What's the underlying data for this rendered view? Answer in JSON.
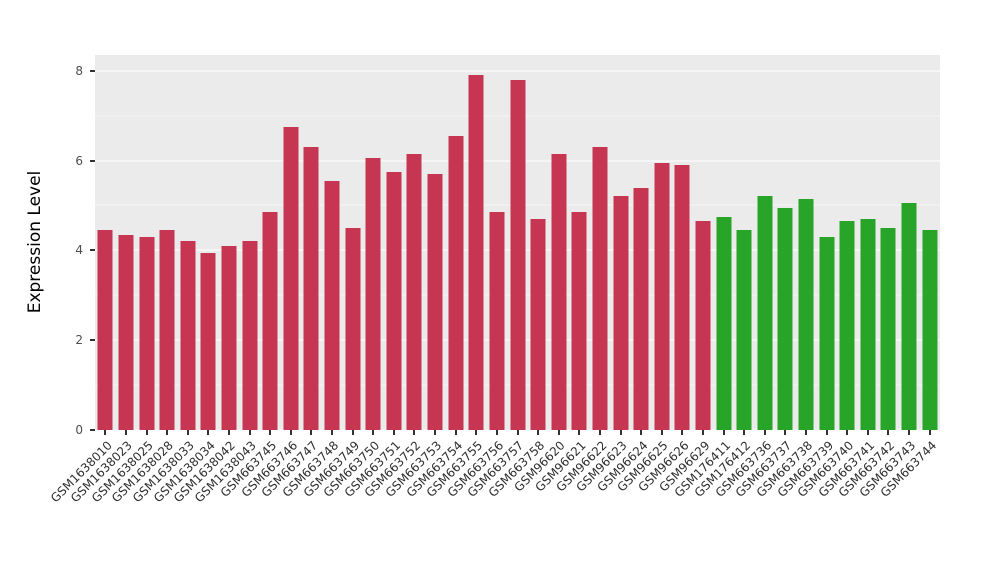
{
  "chart_data": {
    "type": "bar",
    "title": "",
    "xlabel": "",
    "ylabel": "Expression Level",
    "ylim": [
      0,
      8.35
    ],
    "yticks": [
      0,
      2,
      4,
      6,
      8
    ],
    "yticks_minor": [
      1,
      3,
      5,
      7
    ],
    "grid": "white major and minor horizontal gridlines on gray panel",
    "legend_position": "none",
    "panel_bg": "#EBEBEB",
    "groups": [
      {
        "name": "red-group",
        "color": "#C63552"
      },
      {
        "name": "green-group",
        "color": "#28A428"
      }
    ],
    "samples": [
      {
        "label": "GSM1638010",
        "value": 4.45,
        "group": 0
      },
      {
        "label": "GSM1638023",
        "value": 4.35,
        "group": 0
      },
      {
        "label": "GSM1638025",
        "value": 4.3,
        "group": 0
      },
      {
        "label": "GSM1638028",
        "value": 4.45,
        "group": 0
      },
      {
        "label": "GSM1638033",
        "value": 4.2,
        "group": 0
      },
      {
        "label": "GSM1638034",
        "value": 3.95,
        "group": 0
      },
      {
        "label": "GSM1638042",
        "value": 4.1,
        "group": 0
      },
      {
        "label": "GSM1638043",
        "value": 4.2,
        "group": 0
      },
      {
        "label": "GSM663745",
        "value": 4.85,
        "group": 0
      },
      {
        "label": "GSM663746",
        "value": 6.75,
        "group": 0
      },
      {
        "label": "GSM663747",
        "value": 6.3,
        "group": 0
      },
      {
        "label": "GSM663748",
        "value": 5.55,
        "group": 0
      },
      {
        "label": "GSM663749",
        "value": 4.5,
        "group": 0
      },
      {
        "label": "GSM663750",
        "value": 6.05,
        "group": 0
      },
      {
        "label": "GSM663751",
        "value": 5.75,
        "group": 0
      },
      {
        "label": "GSM663752",
        "value": 6.15,
        "group": 0
      },
      {
        "label": "GSM663753",
        "value": 5.7,
        "group": 0
      },
      {
        "label": "GSM663754",
        "value": 6.55,
        "group": 0
      },
      {
        "label": "GSM663755",
        "value": 7.9,
        "group": 0
      },
      {
        "label": "GSM663756",
        "value": 4.85,
        "group": 0
      },
      {
        "label": "GSM663757",
        "value": 7.8,
        "group": 0
      },
      {
        "label": "GSM663758",
        "value": 4.7,
        "group": 0
      },
      {
        "label": "GSM96620",
        "value": 6.15,
        "group": 0
      },
      {
        "label": "GSM96621",
        "value": 4.85,
        "group": 0
      },
      {
        "label": "GSM96622",
        "value": 6.3,
        "group": 0
      },
      {
        "label": "GSM96623",
        "value": 5.2,
        "group": 0
      },
      {
        "label": "GSM96624",
        "value": 5.4,
        "group": 0
      },
      {
        "label": "GSM96625",
        "value": 5.95,
        "group": 0
      },
      {
        "label": "GSM96626",
        "value": 5.9,
        "group": 0
      },
      {
        "label": "GSM96629",
        "value": 4.65,
        "group": 0
      },
      {
        "label": "GSM176411",
        "value": 4.75,
        "group": 1
      },
      {
        "label": "GSM176412",
        "value": 4.45,
        "group": 1
      },
      {
        "label": "GSM663736",
        "value": 5.2,
        "group": 1
      },
      {
        "label": "GSM663737",
        "value": 4.95,
        "group": 1
      },
      {
        "label": "GSM663738",
        "value": 5.15,
        "group": 1
      },
      {
        "label": "GSM663739",
        "value": 4.3,
        "group": 1
      },
      {
        "label": "GSM663740",
        "value": 4.65,
        "group": 1
      },
      {
        "label": "GSM663741",
        "value": 4.7,
        "group": 1
      },
      {
        "label": "GSM663742",
        "value": 4.5,
        "group": 1
      },
      {
        "label": "GSM663743",
        "value": 5.05,
        "group": 1
      },
      {
        "label": "GSM663744",
        "value": 4.45,
        "group": 1
      }
    ]
  }
}
